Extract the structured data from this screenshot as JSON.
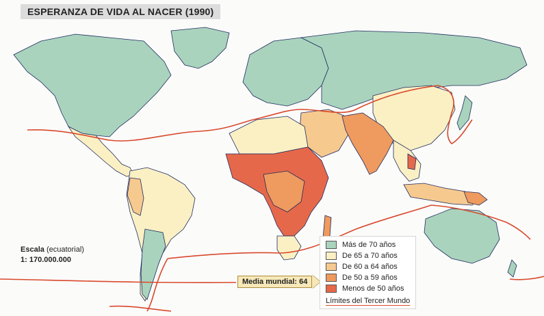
{
  "title": "ESPERANZA DE VIDA AL NACER",
  "year": "(1990)",
  "scale": {
    "label": "Escala",
    "note": "(ecuatorial)",
    "value": "1: 170.000.000"
  },
  "media": {
    "label": "Media mundial: 64"
  },
  "legend": {
    "items": [
      {
        "label": "Más de 70 años",
        "color": "#a9d3bd"
      },
      {
        "label": "De 65 a 70 años",
        "color": "#faf0c4"
      },
      {
        "label": "De 60 a 64 años",
        "color": "#f6c98f"
      },
      {
        "label": "De 50 a 59 años",
        "color": "#ef9a5e"
      },
      {
        "label": "Menos de 50 años",
        "color": "#e6684a"
      }
    ],
    "boundary_label": "Límites del Tercer Mundo",
    "boundary_color": "#d9482b"
  },
  "colors": {
    "ocean": "#fbfbfa",
    "border": "#1f2a5e"
  }
}
